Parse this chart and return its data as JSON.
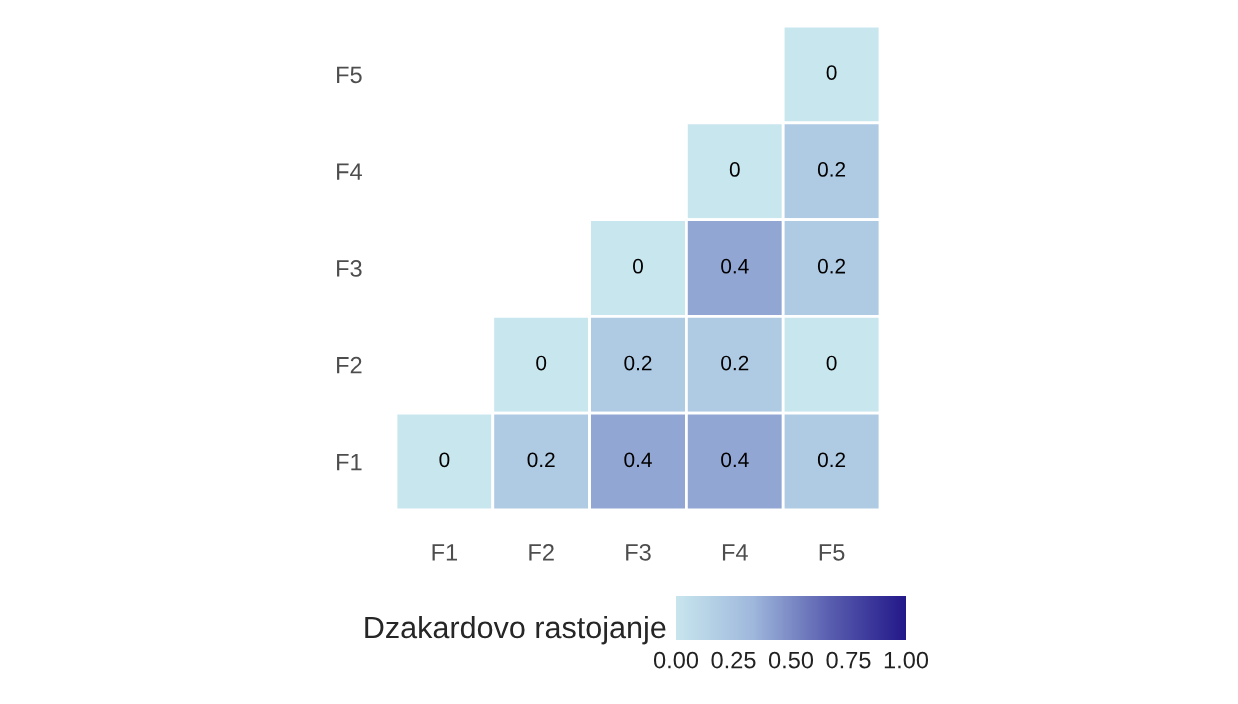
{
  "chart_data": {
    "type": "heatmap",
    "categories": [
      "F1",
      "F2",
      "F3",
      "F4",
      "F5"
    ],
    "y_categories": [
      "F5",
      "F4",
      "F3",
      "F2",
      "F1"
    ],
    "cells": [
      [
        null,
        null,
        null,
        null,
        0
      ],
      [
        null,
        null,
        null,
        0,
        0.2
      ],
      [
        null,
        null,
        0,
        0.4,
        0.2
      ],
      [
        null,
        0,
        0.2,
        0.2,
        0
      ],
      [
        0,
        0.2,
        0.4,
        0.4,
        0.2
      ]
    ],
    "data_labels": true,
    "clabel": "Dzakardovo rastojanje",
    "clim": [
      0,
      1
    ],
    "cticks": [
      {
        "value": 0,
        "label": "0.00"
      },
      {
        "value": 0.25,
        "label": "0.25"
      },
      {
        "value": 0.5,
        "label": "0.50"
      },
      {
        "value": 0.75,
        "label": "0.75"
      },
      {
        "value": 1,
        "label": "1.00"
      }
    ]
  }
}
